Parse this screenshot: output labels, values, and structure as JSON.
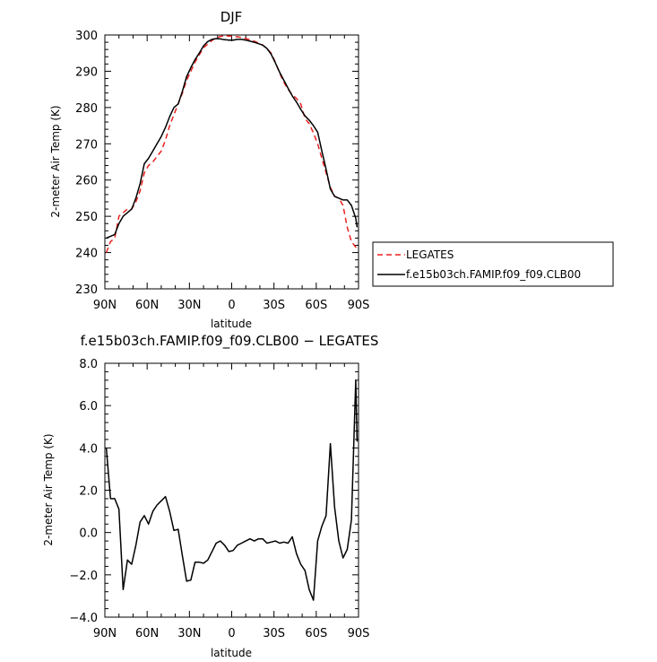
{
  "chart_data": [
    {
      "type": "line",
      "title": "DJF",
      "xlabel": "latitude",
      "ylabel": "2-meter Air Temp (K)",
      "xlim": [
        90,
        -90
      ],
      "ylim": [
        230,
        300
      ],
      "x_ticks": [
        90,
        60,
        30,
        0,
        -30,
        -60,
        -90
      ],
      "x_tick_labels": [
        "90N",
        "60N",
        "30N",
        "0",
        "30S",
        "60S",
        "90S"
      ],
      "y_ticks": [
        230,
        240,
        250,
        260,
        270,
        280,
        290,
        300
      ],
      "y_tick_labels": [
        "230",
        "240",
        "250",
        "260",
        "270",
        "280",
        "290",
        "300"
      ],
      "grid": false,
      "legend_position": "right-bottom-outside",
      "series": [
        {
          "name": "LEGATES",
          "color": "#e8211f",
          "dash": "dashed",
          "x": [
            89,
            86,
            83,
            80,
            77,
            74,
            71,
            68,
            65,
            62,
            59,
            56,
            53,
            50,
            47,
            44,
            41,
            38,
            35,
            32,
            29,
            26,
            23,
            20,
            17,
            14,
            11,
            8,
            5,
            2,
            -1,
            -4,
            -7,
            -10,
            -13,
            -16,
            -19,
            -22,
            -25,
            -28,
            -31,
            -34,
            -37,
            -40,
            -43,
            -46,
            -49,
            -52,
            -55,
            -58,
            -61,
            -64,
            -67,
            -70,
            -73,
            -76,
            -79,
            -82,
            -85,
            -88,
            -89
          ],
          "values": [
            240,
            243,
            244,
            250,
            251,
            252,
            252,
            254,
            257,
            262,
            264,
            265,
            266.5,
            268,
            271,
            275,
            278,
            281,
            284,
            287.5,
            290,
            292.5,
            294.5,
            296.5,
            297.5,
            298.5,
            299.2,
            299.6,
            299.8,
            299.7,
            299.6,
            299.5,
            299.3,
            299,
            298.7,
            298.3,
            297.8,
            297.2,
            296.3,
            295,
            292.5,
            289.5,
            287,
            285,
            283.5,
            282.5,
            281,
            277,
            275.5,
            273,
            270,
            266,
            262,
            258,
            255.5,
            255,
            253,
            247,
            243,
            241.5,
            241.5
          ]
        },
        {
          "name": "f.e15b03ch.FAMIP.f09_f09.CLB00",
          "color": "#000000",
          "dash": "solid",
          "x": [
            89,
            86,
            83,
            80,
            77,
            74,
            71,
            68,
            65,
            62,
            59,
            56,
            53,
            50,
            47,
            44,
            41,
            38,
            35,
            32,
            29,
            26,
            23,
            20,
            17,
            14,
            11,
            8,
            5,
            2,
            -1,
            -4,
            -7,
            -10,
            -13,
            -16,
            -19,
            -22,
            -25,
            -28,
            -31,
            -34,
            -37,
            -40,
            -43,
            -46,
            -49,
            -52,
            -55,
            -58,
            -61,
            -64,
            -67,
            -70,
            -73,
            -76,
            -79,
            -82,
            -85,
            -88,
            -89
          ],
          "values": [
            244,
            244.5,
            245,
            248,
            250,
            251,
            252,
            255,
            259,
            264.5,
            266,
            268,
            270,
            272,
            274.5,
            277.5,
            280,
            281,
            284.5,
            288.5,
            291,
            293.2,
            295,
            297,
            298.2,
            298.8,
            299,
            298.9,
            298.7,
            298.6,
            298.6,
            298.8,
            298.8,
            298.6,
            298.3,
            298,
            297.6,
            297.2,
            296.3,
            294.7,
            292.3,
            289.7,
            287.5,
            285.3,
            283.2,
            281.5,
            279.5,
            277.7,
            276.5,
            275,
            273.2,
            268,
            263,
            257.5,
            255.5,
            255,
            254.5,
            254.5,
            253,
            249.5,
            247
          ]
        }
      ]
    },
    {
      "type": "line",
      "title": "f.e15b03ch.FAMIP.f09_f09.CLB00 − LEGATES",
      "xlabel": "latitude",
      "ylabel": "2-meter Air Temp (K)",
      "xlim": [
        90,
        -90
      ],
      "ylim": [
        -4,
        8
      ],
      "x_ticks": [
        90,
        60,
        30,
        0,
        -30,
        -60,
        -90
      ],
      "x_tick_labels": [
        "90N",
        "60N",
        "30N",
        "0",
        "30S",
        "60S",
        "90S"
      ],
      "y_ticks": [
        -4,
        -2,
        0,
        2,
        4,
        6,
        8
      ],
      "y_tick_labels": [
        "−4.0",
        "−2.0",
        "0.0",
        "2.0",
        "4.0",
        "6.0",
        "8.0"
      ],
      "grid": false,
      "series": [
        {
          "color": "#000000",
          "dash": "solid",
          "x": [
            89,
            86,
            83,
            80,
            77,
            74,
            71,
            68,
            65,
            62,
            59,
            56,
            53,
            50,
            47,
            44,
            41,
            38,
            35,
            32,
            29,
            26,
            23,
            20,
            17,
            14,
            11,
            8,
            5,
            2,
            -1,
            -4,
            -7,
            -10,
            -13,
            -16,
            -19,
            -22,
            -25,
            -28,
            -31,
            -34,
            -37,
            -40,
            -43,
            -46,
            -49,
            -52,
            -55,
            -58,
            -61,
            -64,
            -67,
            -70,
            -73,
            -76,
            -79,
            -82,
            -85,
            -88,
            -89
          ],
          "values": [
            4,
            1.6,
            1.6,
            1.1,
            -2.7,
            -1.3,
            -1.5,
            -0.6,
            0.5,
            0.8,
            0.4,
            1.0,
            1.3,
            1.5,
            1.7,
            1.0,
            0.1,
            0.15,
            -1.1,
            -2.3,
            -2.25,
            -1.4,
            -1.4,
            -1.45,
            -1.3,
            -0.9,
            -0.5,
            -0.4,
            -0.6,
            -0.9,
            -0.85,
            -0.6,
            -0.5,
            -0.4,
            -0.3,
            -0.4,
            -0.3,
            -0.3,
            -0.5,
            -0.45,
            -0.4,
            -0.5,
            -0.45,
            -0.5,
            -0.2,
            -1.0,
            -1.5,
            -1.8,
            -2.7,
            -3.2,
            -0.4,
            0.3,
            0.8,
            4.2,
            1.2,
            -0.4,
            -1.2,
            -0.8,
            0.6,
            7.2,
            4.3
          ]
        }
      ]
    }
  ]
}
